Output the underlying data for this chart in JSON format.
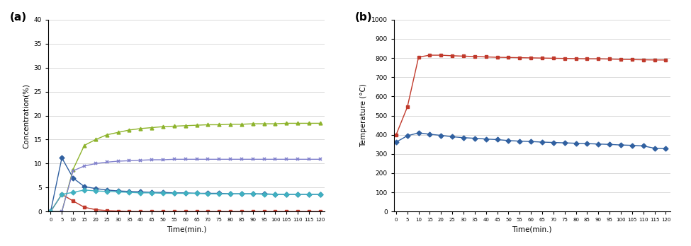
{
  "time_a": [
    0,
    5,
    10,
    15,
    20,
    25,
    30,
    35,
    40,
    45,
    50,
    55,
    60,
    65,
    70,
    75,
    80,
    85,
    90,
    95,
    100,
    105,
    110,
    115,
    120
  ],
  "CH4": [
    0,
    11.2,
    7.0,
    5.2,
    4.8,
    4.5,
    4.3,
    4.2,
    4.1,
    4.0,
    4.0,
    3.9,
    3.9,
    3.8,
    3.8,
    3.8,
    3.7,
    3.7,
    3.7,
    3.7,
    3.6,
    3.6,
    3.6,
    3.6,
    3.6
  ],
  "O2": [
    0,
    3.6,
    2.2,
    0.9,
    0.4,
    0.2,
    0.1,
    0.0,
    0.0,
    0.0,
    0.0,
    0.0,
    0.0,
    0.0,
    0.0,
    0.0,
    0.0,
    0.0,
    0.0,
    0.0,
    0.0,
    0.0,
    0.0,
    0.0,
    0.0
  ],
  "H2": [
    0,
    0.0,
    8.8,
    13.8,
    15.0,
    16.0,
    16.5,
    17.0,
    17.3,
    17.5,
    17.7,
    17.8,
    17.9,
    18.0,
    18.1,
    18.1,
    18.2,
    18.2,
    18.3,
    18.3,
    18.3,
    18.4,
    18.4,
    18.4,
    18.4
  ],
  "CO": [
    0,
    0.0,
    8.5,
    9.5,
    10.0,
    10.3,
    10.5,
    10.6,
    10.7,
    10.8,
    10.8,
    10.9,
    10.9,
    10.9,
    10.9,
    10.9,
    10.9,
    10.9,
    10.9,
    10.9,
    10.9,
    10.9,
    10.9,
    10.9,
    10.9
  ],
  "CO2": [
    0,
    3.6,
    4.0,
    4.5,
    4.3,
    4.2,
    4.1,
    4.0,
    3.9,
    3.9,
    3.8,
    3.8,
    3.8,
    3.8,
    3.7,
    3.7,
    3.7,
    3.7,
    3.7,
    3.6,
    3.6,
    3.6,
    3.6,
    3.6,
    3.6
  ],
  "time_b": [
    0,
    5,
    10,
    15,
    20,
    25,
    30,
    35,
    40,
    45,
    50,
    55,
    60,
    65,
    70,
    75,
    80,
    85,
    90,
    95,
    100,
    105,
    110,
    115,
    120
  ],
  "gas_temp": [
    362,
    395,
    410,
    403,
    397,
    390,
    385,
    382,
    378,
    375,
    370,
    367,
    365,
    362,
    360,
    358,
    356,
    354,
    352,
    350,
    347,
    345,
    342,
    330,
    328
  ],
  "catal_temp": [
    400,
    545,
    805,
    815,
    815,
    812,
    810,
    808,
    806,
    804,
    803,
    802,
    801,
    800,
    799,
    798,
    797,
    796,
    796,
    795,
    793,
    792,
    791,
    790,
    790
  ],
  "color_CH4": "#3060a0",
  "color_O2": "#c0392b",
  "color_H2": "#8db32b",
  "color_CO": "#8080cc",
  "color_CO2": "#40b0c0",
  "color_gas": "#3060a0",
  "color_catal": "#c0392b",
  "label_a": "(a)",
  "label_b": "(b)",
  "xlabel_a": "Time(min.)",
  "ylabel_a": "Concentration(%)",
  "xlabel_b": "Time(min.)",
  "ylabel_b": "Temperature (°C)",
  "ylim_a": [
    0,
    40
  ],
  "ylim_b": [
    0,
    1000
  ],
  "yticks_a": [
    0,
    5,
    10,
    15,
    20,
    25,
    30,
    35,
    40
  ],
  "yticks_b": [
    0,
    100,
    200,
    300,
    400,
    500,
    600,
    700,
    800,
    900,
    1000
  ]
}
